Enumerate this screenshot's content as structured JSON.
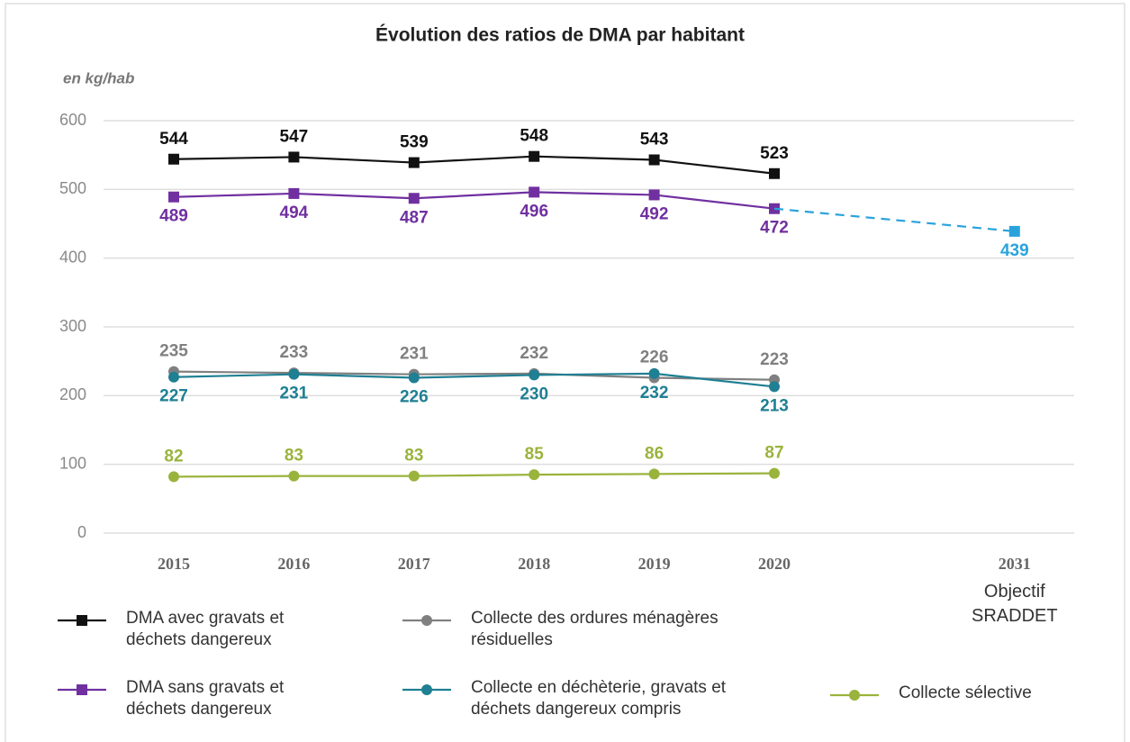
{
  "chart_data": {
    "type": "line",
    "title": "Évolution des ratios de DMA par habitant",
    "y_unit_label": "en kg/hab",
    "categories": [
      "2015",
      "2016",
      "2017",
      "2018",
      "2019",
      "2020",
      "2031"
    ],
    "x_annotation": "Objectif SRADDET",
    "ylim": [
      0,
      600
    ],
    "yticks": [
      0,
      100,
      200,
      300,
      400,
      500,
      600
    ],
    "grid": true,
    "series": [
      {
        "name": "DMA avec gravats et déchets dangereux",
        "color": "#111111",
        "marker": "square",
        "label_position": "above",
        "values": [
          544,
          547,
          539,
          548,
          543,
          523,
          null
        ]
      },
      {
        "name": "DMA sans gravats et déchets dangereux",
        "color": "#7030a0",
        "marker": "square",
        "label_position": "below",
        "values": [
          489,
          494,
          487,
          496,
          492,
          472,
          null
        ]
      },
      {
        "name": "Collecte des ordures ménagères résiduelles",
        "color": "#808080",
        "marker": "circle",
        "label_position": "above",
        "values": [
          235,
          233,
          231,
          232,
          226,
          223,
          null
        ]
      },
      {
        "name": "Collecte en déchèterie, gravats et déchets dangereux compris",
        "color": "#1f7f93",
        "marker": "circle",
        "label_position": "below",
        "values": [
          227,
          231,
          226,
          230,
          232,
          213,
          null
        ]
      },
      {
        "name": "Collecte sélective",
        "color": "#9ab33c",
        "marker": "circle",
        "label_position": "above",
        "values": [
          82,
          83,
          83,
          85,
          86,
          87,
          null
        ]
      },
      {
        "color": "#29a3dc",
        "marker": "square",
        "label_position": "below",
        "dashed": true,
        "values": [
          null,
          null,
          null,
          null,
          null,
          472,
          439
        ],
        "value_labels": [
          null,
          null,
          null,
          null,
          null,
          null,
          "439"
        ]
      }
    ]
  }
}
